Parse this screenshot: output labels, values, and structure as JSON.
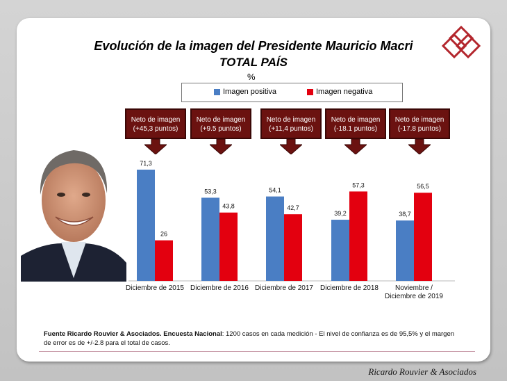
{
  "title": "Evolución de la imagen del Presidente Mauricio Macri",
  "subtitle": "TOTAL PAÍS",
  "unit": "%",
  "legend": {
    "positive": "Imagen positiva",
    "negative": "Imagen negativa"
  },
  "callouts": [
    {
      "line1": "Neto de imagen",
      "line2": "(+45,3 puntos)"
    },
    {
      "line1": "Neto de imagen",
      "line2": "(+9.5 puntos)"
    },
    {
      "line1": "Neto de imagen",
      "line2": "(+11,4 puntos)"
    },
    {
      "line1": "Neto de imagen",
      "line2": "(-18.1 puntos)"
    },
    {
      "line1": "Neto de imagen",
      "line2": "(-17.8 puntos)"
    }
  ],
  "source": {
    "bold": "Fuente Ricardo Rouvier & Asociados. Encuesta Nacional",
    "text": ": 1200 casos en cada medición - El nivel de confianza es de 95,5% y el margen de error es de +/-2.8 para el total de casos."
  },
  "footer": "Ricardo Rouvier & Asociados",
  "colors": {
    "positive": "#4a7ec4",
    "negative": "#e3000f",
    "callout": "#6b1210"
  },
  "chart_data": {
    "type": "bar",
    "categories": [
      "Diciembre de 2015",
      "Diciembre de 2016",
      "Diciembre de 2017",
      "Diciembre de 2018",
      "Noviembre / Diciembre de 2019"
    ],
    "series": [
      {
        "name": "Imagen positiva",
        "values": [
          71.3,
          53.3,
          54.1,
          39.2,
          38.7
        ],
        "labels": [
          "71,3",
          "53,3",
          "54,1",
          "39,2",
          "38,7"
        ]
      },
      {
        "name": "Imagen negativa",
        "values": [
          26,
          43.8,
          42.7,
          57.3,
          56.5
        ],
        "labels": [
          "26",
          "43,8",
          "42,7",
          "57,3",
          "56,5"
        ]
      }
    ],
    "ylim": [
      0,
      80
    ],
    "grid": false,
    "legend_position": "top"
  }
}
